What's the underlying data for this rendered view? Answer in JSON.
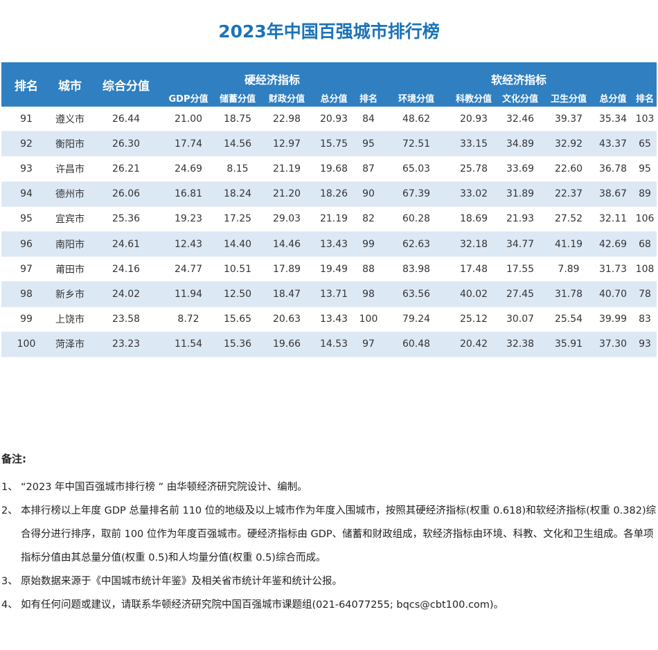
{
  "title": "2023年中国百强城市排行榜",
  "table": {
    "col_rank": "排名",
    "col_city": "城市",
    "col_total": "综合分值",
    "hard_group": "硬经济指标",
    "soft_group": "软经济指标",
    "hard_cols": [
      "GDP分值",
      "储蓄分值",
      "财政分值",
      "总分值",
      "排名"
    ],
    "soft_cols": [
      "环境分值",
      "科教分值",
      "文化分值",
      "卫生分值",
      "总分值",
      "排名"
    ],
    "rows": [
      [
        "91",
        "遵义市",
        "26.44",
        "21.00",
        "18.75",
        "22.98",
        "20.93",
        "84",
        "48.62",
        "20.93",
        "32.46",
        "39.37",
        "35.34",
        "103"
      ],
      [
        "92",
        "衡阳市",
        "26.30",
        "17.74",
        "14.56",
        "12.97",
        "15.75",
        "95",
        "72.51",
        "33.15",
        "34.89",
        "32.92",
        "43.37",
        "65"
      ],
      [
        "93",
        "许昌市",
        "26.21",
        "24.69",
        "8.15",
        "21.19",
        "19.68",
        "87",
        "65.03",
        "25.78",
        "33.69",
        "22.60",
        "36.78",
        "95"
      ],
      [
        "94",
        "德州市",
        "26.06",
        "16.81",
        "18.24",
        "21.20",
        "18.26",
        "90",
        "67.39",
        "33.02",
        "31.89",
        "22.37",
        "38.67",
        "89"
      ],
      [
        "95",
        "宜宾市",
        "25.36",
        "19.23",
        "17.25",
        "29.03",
        "21.19",
        "82",
        "60.28",
        "18.69",
        "21.93",
        "27.52",
        "32.11",
        "106"
      ],
      [
        "96",
        "南阳市",
        "24.61",
        "12.43",
        "14.40",
        "14.46",
        "13.43",
        "99",
        "62.63",
        "32.18",
        "34.77",
        "41.19",
        "42.69",
        "68"
      ],
      [
        "97",
        "莆田市",
        "24.16",
        "24.77",
        "10.51",
        "17.89",
        "19.49",
        "88",
        "83.98",
        "17.48",
        "17.55",
        "7.89",
        "31.73",
        "108"
      ],
      [
        "98",
        "新乡市",
        "24.02",
        "11.94",
        "12.50",
        "18.47",
        "13.71",
        "98",
        "63.56",
        "40.02",
        "27.45",
        "31.78",
        "40.70",
        "78"
      ],
      [
        "99",
        "上饶市",
        "23.58",
        "8.72",
        "15.65",
        "20.63",
        "13.43",
        "100",
        "79.24",
        "25.12",
        "30.07",
        "25.54",
        "39.99",
        "83"
      ],
      [
        "100",
        "菏泽市",
        "23.23",
        "11.54",
        "15.36",
        "19.66",
        "14.53",
        "97",
        "60.48",
        "20.42",
        "32.38",
        "35.91",
        "37.30",
        "93"
      ]
    ]
  },
  "notes": {
    "heading": "备注:",
    "items": [
      {
        "num": "1、",
        "text": "“2023 年中国百强城市排行榜 ” 由华顿经济研究院设计、编制。"
      },
      {
        "num": "2、",
        "text": "本排行榜以上年度 GDP 总量排名前 110 位的地级及以上城市作为年度入围城市，按照其硬经济指标(权重 0.618)和软经济指标(权重 0.382)综合得分进行排序，取前 100 位作为年度百强城市。硬经济指标由 GDP、储蓄和财政组成，软经济指标由环境、科教、文化和卫生组成。各单项指标分值由其总量分值(权重 0.5)和人均量分值(权重 0.5)综合而成。"
      },
      {
        "num": "3、",
        "text": "原始数据来源于《中国城市统计年鉴》及相关省市统计年鉴和统计公报。"
      },
      {
        "num": "4、",
        "text": "如有任何问题或建议，请联系华顿经济研究院中国百强城市课题组(021-64077255; bqcs@cbt100.com)。"
      }
    ]
  }
}
